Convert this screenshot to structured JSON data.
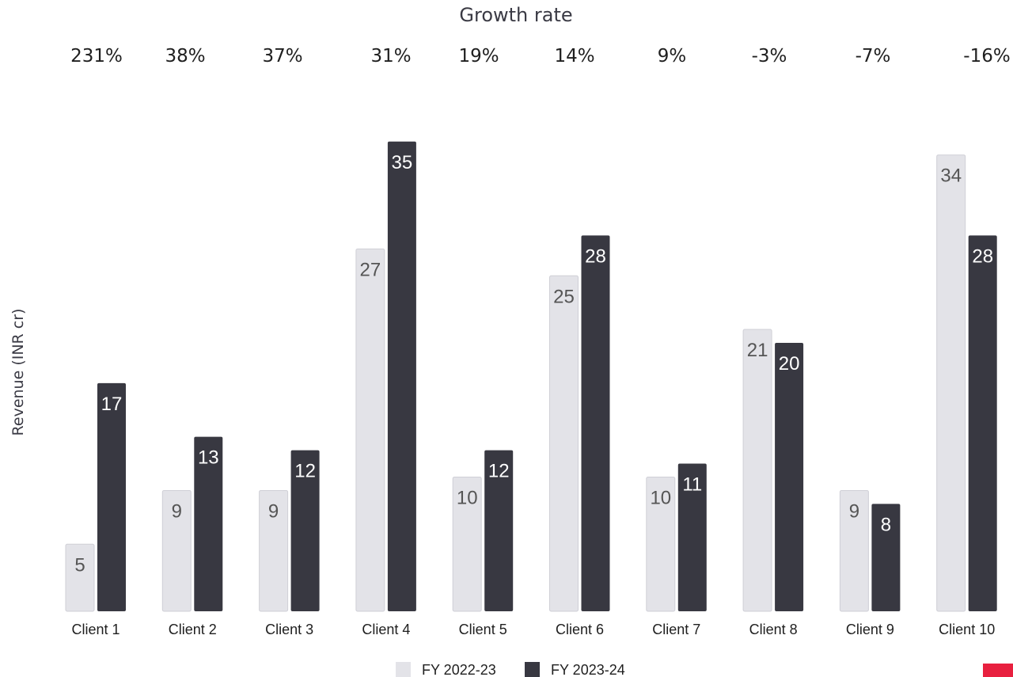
{
  "chart_data": {
    "type": "bar",
    "title": "Growth rate",
    "ylabel": "Revenue (INR cr)",
    "xlabel": "",
    "categories": [
      "Client 1",
      "Client 2",
      "Client 3",
      "Client 4",
      "Client 5",
      "Client 6",
      "Client 7",
      "Client 8",
      "Client 9",
      "Client 10"
    ],
    "growth_rates": [
      "231%",
      "38%",
      "37%",
      "31%",
      "19%",
      "14%",
      "9%",
      "-3%",
      "-7%",
      "-16%"
    ],
    "series": [
      {
        "name": "FY 2022-23",
        "color": "#e3e3e8",
        "values": [
          5,
          9,
          9,
          27,
          10,
          25,
          10,
          21,
          9,
          34
        ]
      },
      {
        "name": "FY 2023-24",
        "color": "#383841",
        "values": [
          17,
          13,
          12,
          35,
          12,
          28,
          11,
          20,
          8,
          28
        ]
      }
    ],
    "ylim": [
      0,
      35
    ],
    "grid": false,
    "legend_position": "bottom"
  },
  "colors": {
    "accent": "#e8203f"
  }
}
